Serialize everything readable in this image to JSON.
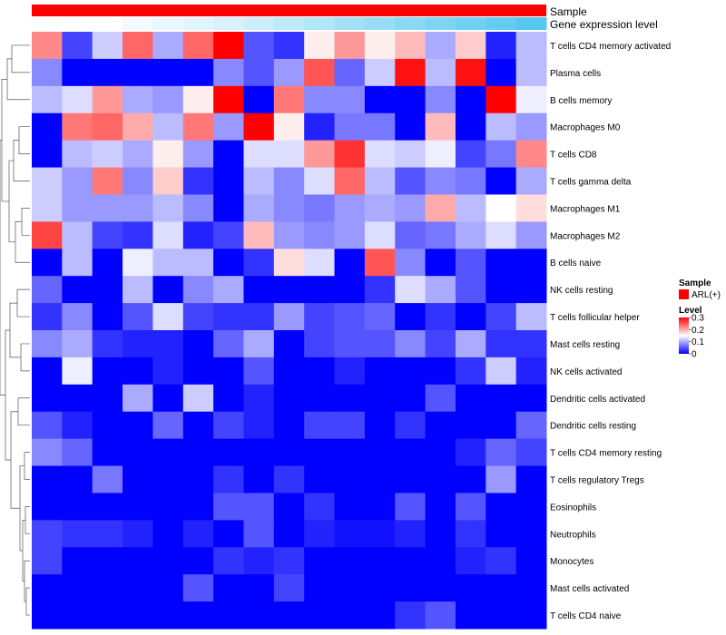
{
  "chart_data": {
    "type": "heatmap",
    "annotation_rows": [
      {
        "label": "Sample",
        "color": "#ff0000"
      },
      {
        "label": "Gene expression level"
      }
    ],
    "gene_expression_level": [
      0.0,
      0.0,
      0.0,
      0.05,
      0.08,
      0.12,
      0.15,
      0.2,
      0.25,
      0.3,
      0.35,
      0.4,
      0.45,
      0.5,
      0.55,
      0.6,
      0.65
    ],
    "rows": [
      "T cells CD4 memory activated",
      "Plasma cells",
      "B cells memory",
      "Macrophages M0",
      "T cells CD8",
      "T cells gamma delta",
      "Macrophages M1",
      "Macrophages M2",
      "B cells naive",
      "NK cells resting",
      "T cells follicular helper",
      "Mast cells resting",
      "NK cells activated",
      "Dendritic cells activated",
      "Dendritic cells resting",
      "T cells CD4 memory resting",
      "T cells regulatory  Tregs",
      "Eosinophils",
      "Neutrophils",
      "Monocytes",
      "Mast cells activated",
      "T cells CD4 naive"
    ],
    "values": [
      [
        0.22,
        0.04,
        0.12,
        0.24,
        0.1,
        0.24,
        0.3,
        0.05,
        0.03,
        0.16,
        0.21,
        0.16,
        0.19,
        0.1,
        0.18,
        0.02,
        0.11
      ],
      [
        0.08,
        0.0,
        0.0,
        0.0,
        0.0,
        0.0,
        0.08,
        0.05,
        0.09,
        0.25,
        0.06,
        0.12,
        0.29,
        0.11,
        0.29,
        0.0,
        0.11
      ],
      [
        0.11,
        0.13,
        0.21,
        0.1,
        0.09,
        0.16,
        0.3,
        0.0,
        0.23,
        0.08,
        0.08,
        0.0,
        0.0,
        0.08,
        0.0,
        0.3,
        0.14
      ],
      [
        0.0,
        0.23,
        0.24,
        0.2,
        0.11,
        0.23,
        0.09,
        0.3,
        0.16,
        0.02,
        0.07,
        0.07,
        0.0,
        0.19,
        0.0,
        0.11,
        0.09
      ],
      [
        0.0,
        0.11,
        0.12,
        0.1,
        0.16,
        0.09,
        0.0,
        0.13,
        0.13,
        0.21,
        0.27,
        0.13,
        0.12,
        0.14,
        0.04,
        0.07,
        0.22
      ],
      [
        0.12,
        0.09,
        0.23,
        0.08,
        0.18,
        0.03,
        0.0,
        0.11,
        0.08,
        0.13,
        0.24,
        0.11,
        0.05,
        0.08,
        0.07,
        0.0,
        0.1
      ],
      [
        0.12,
        0.09,
        0.09,
        0.09,
        0.11,
        0.08,
        0.0,
        0.1,
        0.08,
        0.07,
        0.09,
        0.1,
        0.09,
        0.2,
        0.11,
        0.15,
        0.17
      ],
      [
        0.26,
        0.11,
        0.04,
        0.03,
        0.13,
        0.02,
        0.04,
        0.19,
        0.09,
        0.08,
        0.09,
        0.13,
        0.06,
        0.07,
        0.1,
        0.13,
        0.09
      ],
      [
        0.0,
        0.11,
        0.0,
        0.14,
        0.11,
        0.11,
        0.0,
        0.03,
        0.17,
        0.13,
        0.0,
        0.25,
        0.08,
        0.0,
        0.05,
        0.0,
        0.0
      ],
      [
        0.06,
        0.0,
        0.0,
        0.11,
        0.0,
        0.08,
        0.1,
        0.0,
        0.0,
        0.0,
        0.0,
        0.03,
        0.13,
        0.1,
        0.05,
        0.0,
        0.0
      ],
      [
        0.03,
        0.08,
        0.0,
        0.05,
        0.13,
        0.04,
        0.03,
        0.03,
        0.09,
        0.04,
        0.05,
        0.06,
        0.0,
        0.03,
        0.0,
        0.04,
        0.11
      ],
      [
        0.08,
        0.1,
        0.03,
        0.02,
        0.02,
        0.0,
        0.06,
        0.1,
        0.0,
        0.04,
        0.05,
        0.05,
        0.08,
        0.04,
        0.1,
        0.03,
        0.03
      ],
      [
        0.0,
        0.14,
        0.0,
        0.0,
        0.02,
        0.0,
        0.0,
        0.05,
        0.0,
        0.0,
        0.02,
        0.0,
        0.0,
        0.0,
        0.03,
        0.12,
        0.02
      ],
      [
        0.0,
        0.0,
        0.0,
        0.1,
        0.0,
        0.12,
        0.0,
        0.02,
        0.0,
        0.0,
        0.0,
        0.0,
        0.0,
        0.05,
        0.0,
        0.0,
        0.0
      ],
      [
        0.05,
        0.02,
        0.0,
        0.0,
        0.06,
        0.0,
        0.04,
        0.02,
        0.0,
        0.04,
        0.04,
        0.0,
        0.03,
        0.0,
        0.0,
        0.0,
        0.06
      ],
      [
        0.08,
        0.06,
        0.0,
        0.0,
        0.0,
        0.0,
        0.0,
        0.0,
        0.0,
        0.0,
        0.0,
        0.0,
        0.0,
        0.0,
        0.02,
        0.06,
        0.04
      ],
      [
        0.0,
        0.0,
        0.07,
        0.0,
        0.0,
        0.0,
        0.03,
        0.0,
        0.03,
        0.0,
        0.0,
        0.0,
        0.0,
        0.0,
        0.0,
        0.09,
        0.0
      ],
      [
        0.0,
        0.0,
        0.0,
        0.0,
        0.0,
        0.0,
        0.05,
        0.05,
        0.0,
        0.03,
        0.0,
        0.0,
        0.05,
        0.0,
        0.05,
        0.0,
        0.0
      ],
      [
        0.04,
        0.03,
        0.03,
        0.02,
        0.0,
        0.02,
        0.0,
        0.05,
        0.0,
        0.02,
        0.01,
        0.01,
        0.02,
        0.0,
        0.03,
        0.0,
        0.0
      ],
      [
        0.04,
        0.0,
        0.0,
        0.0,
        0.0,
        0.0,
        0.03,
        0.02,
        0.03,
        0.0,
        0.0,
        0.0,
        0.0,
        0.0,
        0.02,
        0.03,
        0.0
      ],
      [
        0.0,
        0.0,
        0.0,
        0.0,
        0.0,
        0.05,
        0.0,
        0.0,
        0.04,
        0.0,
        0.0,
        0.0,
        0.0,
        0.0,
        0.0,
        0.0,
        0.0
      ],
      [
        0.0,
        0.0,
        0.0,
        0.0,
        0.0,
        0.0,
        0.0,
        0.0,
        0.0,
        0.0,
        0.0,
        0.0,
        0.03,
        0.05,
        0.0,
        0.0,
        0.0
      ]
    ],
    "color_scale": {
      "min": 0,
      "mid": 0.15,
      "max": 0.3,
      "low": "#0000ff",
      "mid_color": "#ffffff",
      "high": "#ff0000"
    },
    "legend": {
      "sample_title": "Sample",
      "sample_entry": "ARL(+)",
      "sample_color": "#ff0000",
      "level_title": "Level",
      "level_ticks": [
        {
          "value": 0.3,
          "label": "0.3"
        },
        {
          "value": 0.2,
          "label": "0.2"
        },
        {
          "value": 0.1,
          "label": "0.1"
        },
        {
          "value": 0,
          "label": "0"
        }
      ]
    },
    "dendrogram_leaf_order": "rows",
    "gene_expression_colors": {
      "low": "#ffffff",
      "high": "#56c8ee"
    }
  }
}
